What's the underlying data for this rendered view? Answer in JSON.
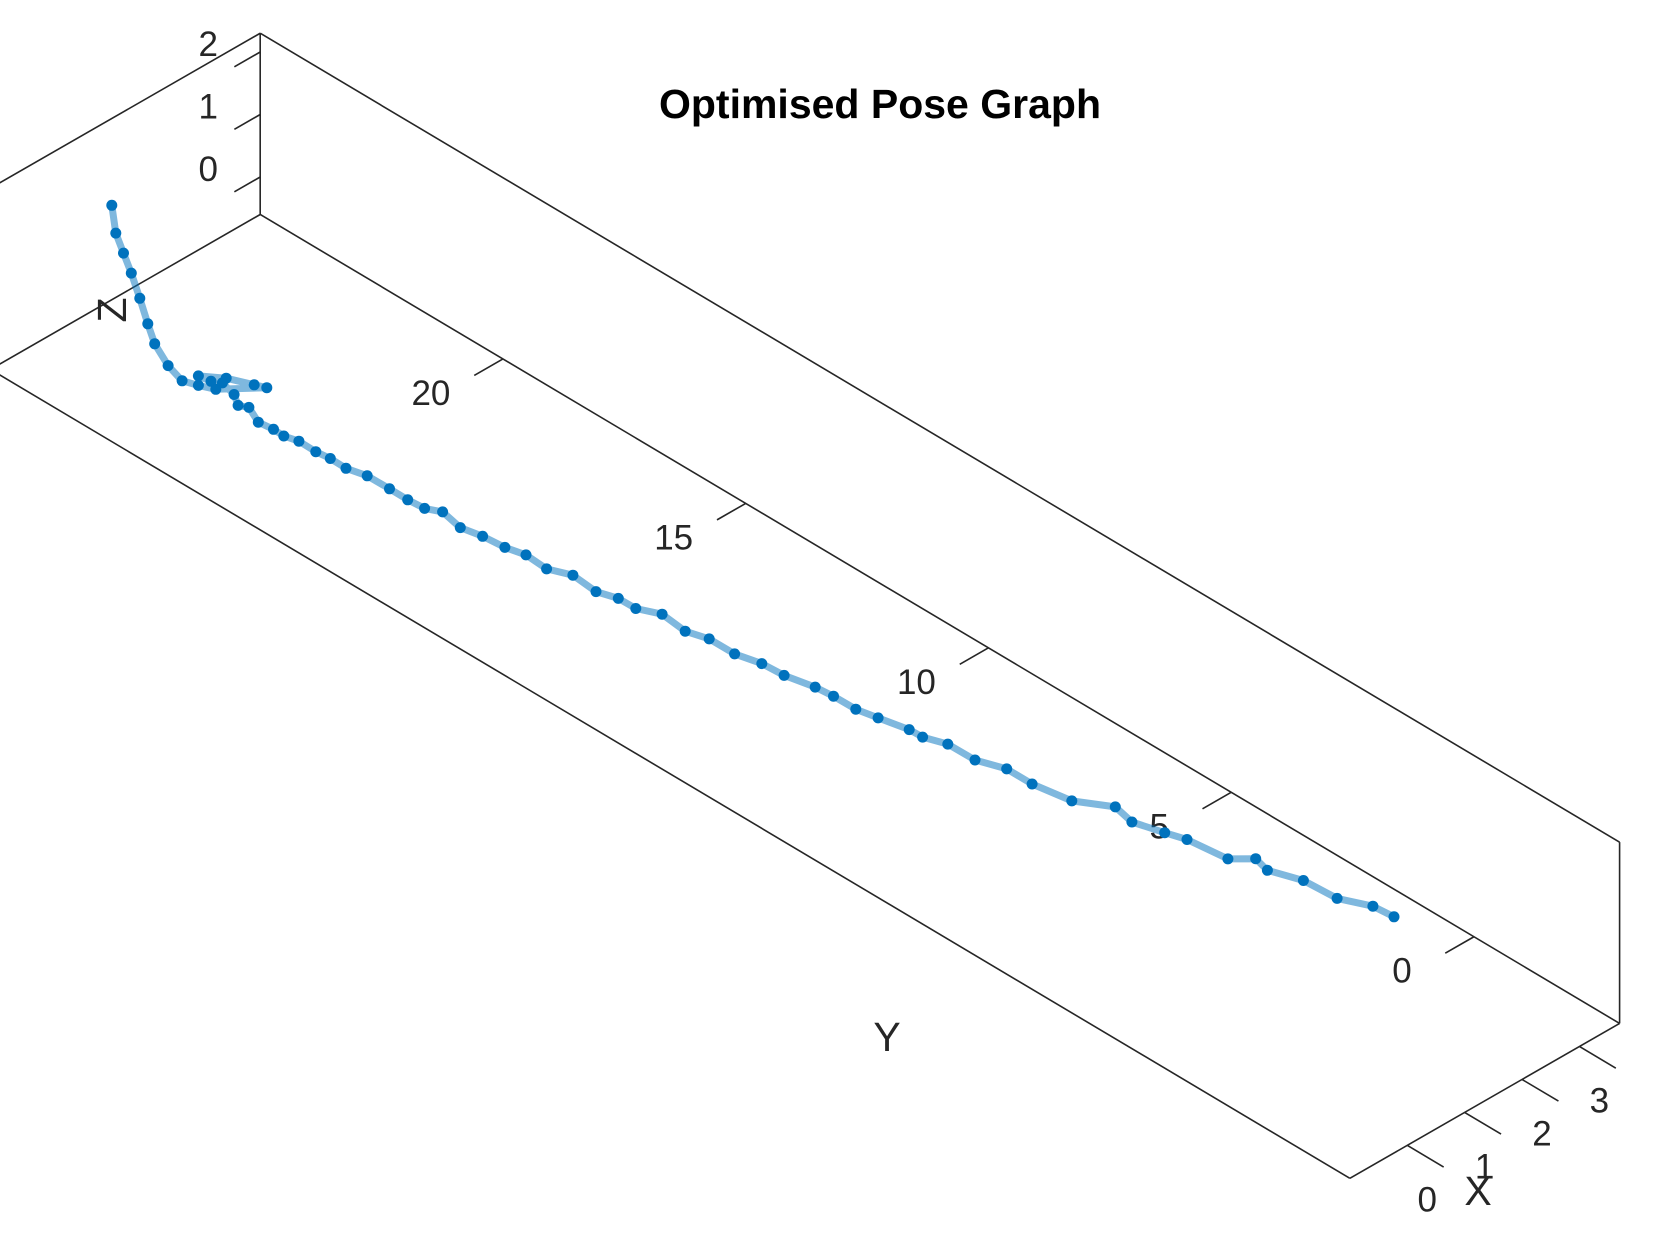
{
  "chart_data": {
    "type": "line",
    "projection": "3d",
    "title": "Optimised Pose Graph",
    "xlabel": "X",
    "ylabel": "Y",
    "zlabel": "Z",
    "xlim": [
      -1,
      3.7
    ],
    "ylim": [
      -3,
      25
    ],
    "zlim": [
      -0.6,
      2.3
    ],
    "xticks": [
      0,
      1,
      2,
      3
    ],
    "yticks": [
      0,
      5,
      10,
      15,
      20
    ],
    "zticks": [
      0,
      1,
      2
    ],
    "grid": false,
    "legend": "none",
    "colors": {
      "line": "#0072bd",
      "marker": "#0072bd",
      "axis": "#262626"
    },
    "series": [
      {
        "marker": "dot",
        "x": [
          2.73,
          2.7,
          2.5,
          2.42,
          2.3,
          2.35,
          2.12,
          2.0,
          1.95,
          1.8,
          1.85,
          1.6,
          1.5,
          1.48,
          1.35,
          1.3,
          1.2,
          1.22,
          1.1,
          1.05,
          1.0,
          1.02,
          0.9,
          0.85,
          0.8,
          0.78,
          0.7,
          0.72,
          0.6,
          0.55,
          0.5,
          0.52,
          0.4,
          0.38,
          0.35,
          0.3,
          0.25,
          0.28,
          0.22,
          0.18,
          0.2,
          0.15,
          0.12,
          0.1,
          0.1,
          0.06,
          0.05,
          0.04,
          0.03,
          0.12,
          0.1,
          0.2,
          0.25,
          0.22,
          0.17,
          0.4,
          0.55,
          0.6,
          0.05,
          0.0,
          -0.03,
          -0.02,
          0.0,
          0.05,
          0.08,
          0.1,
          0.05,
          0.0,
          0.1
        ],
        "y": [
          0.5,
          0.9,
          1.4,
          2.0,
          2.6,
          2.9,
          3.2,
          3.9,
          4.3,
          4.8,
          5.2,
          5.8,
          6.5,
          7.0,
          7.5,
          8.0,
          8.4,
          8.7,
          9.2,
          9.6,
          10.0,
          10.4,
          10.9,
          11.3,
          11.8,
          12.3,
          12.7,
          13.2,
          13.6,
          13.9,
          14.3,
          14.8,
          15.2,
          15.6,
          16.0,
          16.4,
          16.8,
          17.2,
          17.5,
          17.8,
          18.2,
          18.6,
          19.0,
          19.3,
          19.6,
          19.9,
          20.2,
          20.4,
          20.7,
          21.0,
          21.2,
          21.4,
          21.7,
          21.9,
          22.1,
          21.8,
          21.4,
          21.2,
          21.6,
          21.9,
          22.2,
          22.5,
          22.8,
          23.0,
          23.2,
          23.4,
          23.5,
          23.6,
          23.8
        ],
        "z": [
          0.0,
          0.0,
          0.0,
          0.05,
          0.0,
          0.02,
          0.0,
          0.05,
          0.0,
          0.02,
          0.05,
          0.0,
          0.0,
          0.02,
          0.0,
          0.05,
          0.03,
          0.0,
          0.02,
          0.0,
          0.05,
          0.0,
          0.02,
          0.05,
          0.0,
          0.02,
          0.0,
          0.03,
          0.0,
          0.05,
          0.0,
          0.02,
          0.0,
          0.05,
          0.0,
          0.02,
          0.0,
          0.05,
          0.0,
          0.02,
          0.0,
          0.05,
          0.0,
          0.03,
          0.0,
          0.05,
          0.0,
          0.02,
          0.0,
          0.05,
          0.0,
          0.03,
          0.05,
          0.0,
          0.02,
          0.0,
          0.0,
          0.02,
          0.1,
          0.05,
          0.0,
          0.1,
          0.3,
          0.5,
          0.8,
          1.1,
          1.4,
          1.7,
          2.0
        ]
      }
    ]
  }
}
